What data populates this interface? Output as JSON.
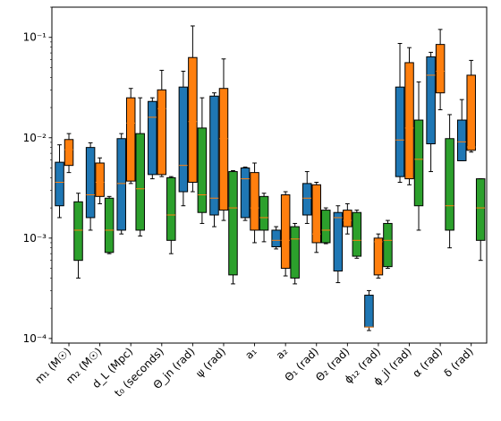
{
  "chart_data": {
    "type": "boxplot",
    "title": "",
    "xlabel": "",
    "ylabel": "",
    "yscale": "log",
    "ylim": [
      9e-05,
      0.2
    ],
    "grid": false,
    "legend": "none",
    "y_ticks": [
      {
        "value": 0.0001,
        "label": "10⁻⁴"
      },
      {
        "value": 0.001,
        "label": "10⁻³"
      },
      {
        "value": 0.01,
        "label": "10⁻²"
      },
      {
        "value": 0.1,
        "label": "10⁻¹"
      }
    ],
    "categories": [
      "m₁ (M☉)",
      "m₂ (M☉)",
      "d_L (Mpc)",
      "t₀ (seconds)",
      "Θ_jn (rad)",
      "ψ (rad)",
      "a₁",
      "a₂",
      "Θ₁ (rad)",
      "Θ₂ (rad)",
      "ϕ₁₂ (rad)",
      "ϕ_jl (rad)",
      "α (rad)",
      "δ (rad)"
    ],
    "series_colors": [
      "#1f77b4",
      "#ff7f0e",
      "#2ca02c"
    ],
    "median_color": "#ff7f0e",
    "boxes": [
      [
        {
          "wl": 0.0016,
          "q1": 0.0021,
          "med": 0.0036,
          "q3": 0.0057,
          "wh": 0.0085
        },
        {
          "wl": 0.0045,
          "q1": 0.0053,
          "med": 0.0076,
          "q3": 0.0096,
          "wh": 0.011
        },
        {
          "wl": 0.0004,
          "q1": 0.0006,
          "med": 0.0012,
          "q3": 0.0023,
          "wh": 0.0028
        }
      ],
      [
        {
          "wl": 0.0012,
          "q1": 0.0016,
          "med": 0.0027,
          "q3": 0.008,
          "wh": 0.0089
        },
        {
          "wl": 0.0022,
          "q1": 0.0026,
          "med": 0.0036,
          "q3": 0.0056,
          "wh": 0.0063
        },
        {
          "wl": 0.0007,
          "q1": 0.00072,
          "med": 0.0012,
          "q3": 0.0025,
          "wh": 0.0026
        }
      ],
      [
        {
          "wl": 0.0011,
          "q1": 0.0012,
          "med": 0.0035,
          "q3": 0.0098,
          "wh": 0.011
        },
        {
          "wl": 0.0035,
          "q1": 0.0037,
          "med": 0.014,
          "q3": 0.025,
          "wh": 0.031
        },
        {
          "wl": 0.00105,
          "q1": 0.0012,
          "med": 0.0031,
          "q3": 0.011,
          "wh": 0.025
        }
      ],
      [
        {
          "wl": 0.0039,
          "q1": 0.0043,
          "med": 0.016,
          "q3": 0.023,
          "wh": 0.025
        },
        {
          "wl": 0.0041,
          "q1": 0.0043,
          "med": 0.0195,
          "q3": 0.03,
          "wh": 0.047
        },
        {
          "wl": 0.0007,
          "q1": 0.00095,
          "med": 0.0017,
          "q3": 0.004,
          "wh": 0.0041
        }
      ],
      [
        {
          "wl": 0.0021,
          "q1": 0.0029,
          "med": 0.0053,
          "q3": 0.032,
          "wh": 0.046
        },
        {
          "wl": 0.0029,
          "q1": 0.0036,
          "med": 0.0145,
          "q3": 0.063,
          "wh": 0.13
        },
        {
          "wl": 0.0014,
          "q1": 0.0018,
          "med": 0.0027,
          "q3": 0.0125,
          "wh": 0.025
        }
      ],
      [
        {
          "wl": 0.0013,
          "q1": 0.0017,
          "med": 0.0025,
          "q3": 0.026,
          "wh": 0.028
        },
        {
          "wl": 0.0015,
          "q1": 0.0019,
          "med": 0.0098,
          "q3": 0.031,
          "wh": 0.061
        },
        {
          "wl": 0.00035,
          "q1": 0.00043,
          "med": 0.002,
          "q3": 0.0046,
          "wh": 0.0047
        }
      ],
      [
        {
          "wl": 0.0015,
          "q1": 0.0016,
          "med": 0.0039,
          "q3": 0.005,
          "wh": 0.0051
        },
        {
          "wl": 0.0009,
          "q1": 0.0012,
          "med": 0.002,
          "q3": 0.0045,
          "wh": 0.0056
        },
        {
          "wl": 0.00092,
          "q1": 0.0012,
          "med": 0.0016,
          "q3": 0.0026,
          "wh": 0.0028
        }
      ],
      [
        {
          "wl": 0.00078,
          "q1": 0.00082,
          "med": 0.00095,
          "q3": 0.0012,
          "wh": 0.0013
        },
        {
          "wl": 0.00042,
          "q1": 0.0005,
          "med": 0.00095,
          "q3": 0.0027,
          "wh": 0.0029
        },
        {
          "wl": 0.00035,
          "q1": 0.0004,
          "med": 0.00098,
          "q3": 0.0013,
          "wh": 0.0014
        }
      ],
      [
        {
          "wl": 0.0014,
          "q1": 0.0017,
          "med": 0.0025,
          "q3": 0.0035,
          "wh": 0.0046
        },
        {
          "wl": 0.00072,
          "q1": 0.0009,
          "med": 0.0011,
          "q3": 0.0034,
          "wh": 0.0036
        },
        {
          "wl": 0.00088,
          "q1": 0.0009,
          "med": 0.0012,
          "q3": 0.0019,
          "wh": 0.002
        }
      ],
      [
        {
          "wl": 0.00036,
          "q1": 0.00047,
          "med": 0.0016,
          "q3": 0.0018,
          "wh": 0.0021
        },
        {
          "wl": 0.0011,
          "q1": 0.0013,
          "med": 0.0015,
          "q3": 0.0019,
          "wh": 0.0022
        },
        {
          "wl": 0.00063,
          "q1": 0.00066,
          "med": 0.00095,
          "q3": 0.0018,
          "wh": 0.0019
        }
      ],
      [
        {
          "wl": 0.00012,
          "q1": 0.00013,
          "med": 0.00013,
          "q3": 0.00027,
          "wh": 0.0003
        },
        {
          "wl": 0.0004,
          "q1": 0.00043,
          "med": 0.00092,
          "q3": 0.001,
          "wh": 0.0011
        },
        {
          "wl": 0.0005,
          "q1": 0.00052,
          "med": 0.00095,
          "q3": 0.0014,
          "wh": 0.0015
        }
      ],
      [
        {
          "wl": 0.0036,
          "q1": 0.0041,
          "med": 0.0095,
          "q3": 0.032,
          "wh": 0.087
        },
        {
          "wl": 0.0034,
          "q1": 0.0039,
          "med": 0.0125,
          "q3": 0.056,
          "wh": 0.079
        },
        {
          "wl": 0.0012,
          "q1": 0.0021,
          "med": 0.0061,
          "q3": 0.015,
          "wh": 0.036
        }
      ],
      [
        {
          "wl": 0.0046,
          "q1": 0.0087,
          "med": 0.042,
          "q3": 0.064,
          "wh": 0.071
        },
        {
          "wl": 0.019,
          "q1": 0.028,
          "med": 0.046,
          "q3": 0.085,
          "wh": 0.12
        },
        {
          "wl": 0.0008,
          "q1": 0.0012,
          "med": 0.0021,
          "q3": 0.0098,
          "wh": 0.017
        }
      ],
      [
        {
          "wl": 0.0059,
          "q1": 0.0059,
          "med": 0.0091,
          "q3": 0.015,
          "wh": 0.024
        },
        {
          "wl": 0.0072,
          "q1": 0.0075,
          "med": 0.0081,
          "q3": 0.042,
          "wh": 0.059
        },
        {
          "wl": 0.0006,
          "q1": 0.00095,
          "med": 0.002,
          "q3": 0.0039,
          "wh": 0.0039
        }
      ]
    ]
  }
}
